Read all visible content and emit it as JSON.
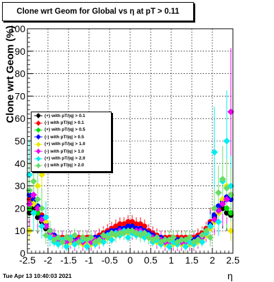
{
  "chart_data": {
    "type": "scatter",
    "title": "Clone wrt Geom for Global vs   η at pT > 0.11",
    "xlabel": "η",
    "ylabel": "Clone wrt Geom (%)",
    "xlim": [
      -2.5,
      2.5
    ],
    "ylim": [
      0,
      100
    ],
    "x_ticks": [
      "-2.5",
      "-2",
      "-1.5",
      "-1",
      "-0.5",
      "0",
      "0.5",
      "1",
      "1.5",
      "2",
      "2.5"
    ],
    "y_ticks": [
      "0",
      "10",
      "20",
      "30",
      "40",
      "50",
      "60",
      "70",
      "80",
      "90",
      "100"
    ],
    "grid": true,
    "legend_position": "left",
    "series": [
      {
        "name": "(+) with pT/|q| > 0.1",
        "color": "#000000",
        "marker": "circle",
        "x": [
          -2.45,
          -2.35,
          -2.25,
          -2.15,
          -2.05,
          -1.95,
          -1.85,
          -1.75,
          -1.65,
          -1.55,
          -1.45,
          -1.35,
          -1.25,
          -1.15,
          -1.05,
          -0.95,
          -0.85,
          -0.75,
          -0.65,
          -0.55,
          -0.45,
          -0.35,
          -0.25,
          -0.15,
          -0.05,
          0.05,
          0.15,
          0.25,
          0.35,
          0.45,
          0.55,
          0.65,
          0.75,
          0.85,
          0.95,
          1.05,
          1.15,
          1.25,
          1.35,
          1.45,
          1.55,
          1.65,
          1.75,
          1.85,
          1.95,
          2.05,
          2.15,
          2.25,
          2.35,
          2.45
        ],
        "y": [
          18,
          20,
          16,
          14,
          11,
          9,
          7,
          6,
          6,
          6,
          6,
          6,
          6,
          6,
          6,
          6,
          6,
          7,
          8,
          9,
          10,
          11,
          11,
          11,
          11,
          11,
          11,
          11,
          10,
          9,
          7,
          7,
          6,
          6,
          6,
          6,
          6,
          6,
          6,
          6,
          6,
          7,
          8,
          10,
          13,
          16,
          18,
          20,
          18,
          17
        ]
      },
      {
        "name": "(-) with pT/|q| > 0.1",
        "color": "#ff0000",
        "marker": "circle",
        "x": [
          -2.45,
          -2.35,
          -2.25,
          -2.15,
          -2.05,
          -1.95,
          -1.85,
          -1.75,
          -1.65,
          -1.55,
          -1.45,
          -1.35,
          -1.25,
          -1.15,
          -1.05,
          -0.95,
          -0.85,
          -0.75,
          -0.65,
          -0.55,
          -0.45,
          -0.35,
          -0.25,
          -0.15,
          -0.05,
          0.05,
          0.15,
          0.25,
          0.35,
          0.45,
          0.55,
          0.65,
          0.75,
          0.85,
          0.95,
          1.05,
          1.15,
          1.25,
          1.35,
          1.45,
          1.55,
          1.65,
          1.75,
          1.85,
          1.95,
          2.05,
          2.15,
          2.25,
          2.35,
          2.45
        ],
        "y": [
          24,
          22,
          20,
          17,
          13,
          10,
          8,
          7,
          7,
          7,
          7,
          7,
          7,
          7,
          7,
          7,
          7,
          8,
          9,
          10,
          11,
          12,
          13,
          13,
          14,
          14,
          13,
          13,
          12,
          10,
          9,
          8,
          7,
          7,
          7,
          7,
          7,
          7,
          7,
          7,
          7,
          8,
          9,
          11,
          14,
          17,
          20,
          22,
          24,
          26
        ]
      },
      {
        "name": "(+) with pT/|q| > 0.5",
        "color": "#00dd00",
        "marker": "circle",
        "x": [
          -2.45,
          -2.35,
          -2.25,
          -2.15,
          -2.05,
          -1.95,
          -1.85,
          -1.75,
          -1.65,
          -1.55,
          -1.45,
          -1.35,
          -1.25,
          -1.15,
          -1.05,
          -0.95,
          -0.85,
          -0.75,
          -0.65,
          -0.55,
          -0.45,
          -0.35,
          -0.25,
          -0.15,
          -0.05,
          0.05,
          0.15,
          0.25,
          0.35,
          0.45,
          0.55,
          0.65,
          0.75,
          0.85,
          0.95,
          1.05,
          1.15,
          1.25,
          1.35,
          1.45,
          1.55,
          1.65,
          1.75,
          1.85,
          1.95,
          2.05,
          2.15,
          2.25,
          2.35,
          2.45
        ],
        "y": [
          20,
          23,
          18,
          15,
          12,
          9,
          7,
          6,
          6,
          5,
          6,
          5,
          6,
          5,
          6,
          6,
          6,
          6,
          7,
          8,
          9,
          9,
          10,
          10,
          10,
          10,
          10,
          10,
          9,
          8,
          7,
          6,
          6,
          5,
          6,
          5,
          6,
          5,
          6,
          5,
          6,
          6,
          7,
          9,
          12,
          15,
          18,
          22,
          20,
          18
        ]
      },
      {
        "name": "(-) with pT/|q| > 0.5",
        "color": "#0000ff",
        "marker": "circle",
        "x": [
          -2.45,
          -2.35,
          -2.25,
          -2.15,
          -2.05,
          -1.95,
          -1.85,
          -1.75,
          -1.65,
          -1.55,
          -1.45,
          -1.35,
          -1.25,
          -1.15,
          -1.05,
          -0.95,
          -0.85,
          -0.75,
          -0.65,
          -0.55,
          -0.45,
          -0.35,
          -0.25,
          -0.15,
          -0.05,
          0.05,
          0.15,
          0.25,
          0.35,
          0.45,
          0.55,
          0.65,
          0.75,
          0.85,
          0.95,
          1.05,
          1.15,
          1.25,
          1.35,
          1.45,
          1.55,
          1.65,
          1.75,
          1.85,
          1.95,
          2.05,
          2.15,
          2.25,
          2.35,
          2.45
        ],
        "y": [
          26,
          24,
          21,
          16,
          13,
          10,
          8,
          7,
          6,
          6,
          6,
          6,
          6,
          6,
          6,
          6,
          7,
          7,
          8,
          9,
          10,
          10,
          11,
          11,
          12,
          12,
          11,
          11,
          10,
          9,
          8,
          7,
          7,
          6,
          6,
          6,
          6,
          6,
          6,
          6,
          6,
          7,
          8,
          10,
          13,
          17,
          21,
          23,
          25,
          24
        ]
      },
      {
        "name": "(+) with pT/|q| > 1.0",
        "color": "#e8e800",
        "marker": "diamond",
        "x": [
          -2.45,
          -2.35,
          -2.25,
          -2.15,
          -2.05,
          -1.95,
          -1.85,
          -1.75,
          -1.65,
          -1.55,
          -1.45,
          -1.35,
          -1.25,
          -1.15,
          -1.05,
          -0.95,
          -0.85,
          -0.75,
          -0.65,
          -0.55,
          -0.45,
          -0.35,
          -0.25,
          -0.15,
          -0.05,
          0.05,
          0.15,
          0.25,
          0.35,
          0.45,
          0.55,
          0.65,
          0.75,
          0.85,
          0.95,
          1.05,
          1.15,
          1.25,
          1.35,
          1.45,
          1.55,
          1.65,
          1.75,
          1.85,
          1.95,
          2.05,
          2.15,
          2.25,
          2.35,
          2.45
        ],
        "y": [
          10,
          22,
          30,
          35,
          14,
          8,
          6,
          5,
          5,
          4,
          5,
          4,
          5,
          4,
          5,
          4,
          5,
          5,
          6,
          7,
          8,
          8,
          9,
          9,
          9,
          9,
          9,
          9,
          8,
          7,
          6,
          5,
          5,
          4,
          4,
          4,
          4,
          4,
          3,
          4,
          4,
          5,
          6,
          8,
          11,
          14,
          18,
          24,
          30,
          10
        ]
      },
      {
        "name": "(-) with pT/|q| > 1.0",
        "color": "#ee00ee",
        "marker": "diamond",
        "x": [
          -2.45,
          -2.35,
          -2.25,
          -2.15,
          -2.05,
          -1.95,
          -1.85,
          -1.75,
          -1.65,
          -1.55,
          -1.45,
          -1.35,
          -1.25,
          -1.15,
          -1.05,
          -0.95,
          -0.85,
          -0.75,
          -0.65,
          -0.55,
          -0.45,
          -0.35,
          -0.25,
          -0.15,
          -0.05,
          0.05,
          0.15,
          0.25,
          0.35,
          0.45,
          0.55,
          0.65,
          0.75,
          0.85,
          0.95,
          1.05,
          1.15,
          1.25,
          1.35,
          1.45,
          1.55,
          1.65,
          1.75,
          1.85,
          1.95,
          2.05,
          2.15,
          2.25,
          2.35,
          2.45
        ],
        "y": [
          22,
          26,
          20,
          15,
          12,
          9,
          7,
          6,
          6,
          5,
          6,
          5,
          6,
          5,
          6,
          5,
          6,
          6,
          7,
          8,
          9,
          9,
          10,
          10,
          10,
          10,
          10,
          10,
          9,
          8,
          7,
          6,
          6,
          5,
          5,
          5,
          5,
          5,
          5,
          5,
          5,
          6,
          7,
          9,
          12,
          15,
          19,
          22,
          24,
          63
        ]
      },
      {
        "name": "(+) with pT/|q| > 2.0",
        "color": "#00eeee",
        "marker": "diamond",
        "x": [
          -2.45,
          -2.35,
          -2.25,
          -2.15,
          -2.05,
          -1.95,
          -1.85,
          -1.75,
          -1.65,
          -1.55,
          -1.45,
          -1.35,
          -1.25,
          -1.15,
          -1.05,
          -0.95,
          -0.85,
          -0.75,
          -0.65,
          -0.55,
          -0.45,
          -0.35,
          -0.25,
          -0.15,
          -0.05,
          0.05,
          0.15,
          0.25,
          0.35,
          0.45,
          0.55,
          0.65,
          0.75,
          0.85,
          0.95,
          1.05,
          1.15,
          1.25,
          1.35,
          1.45,
          1.55,
          1.65,
          1.75,
          1.85,
          1.95,
          2.05,
          2.15,
          2.25,
          2.35,
          2.45
        ],
        "y": [
          35,
          18,
          38,
          12,
          16,
          7,
          5,
          4,
          6,
          3,
          7,
          4,
          5,
          6,
          3,
          7,
          4,
          6,
          5,
          8,
          6,
          9,
          8,
          10,
          7,
          9,
          8,
          9,
          7,
          8,
          5,
          6,
          4,
          6,
          3,
          5,
          4,
          6,
          3,
          5,
          4,
          6,
          5,
          9,
          12,
          45,
          14,
          32,
          50,
          30
        ]
      },
      {
        "name": "(-) with pT/|q| > 2.0",
        "color": "#66dd66",
        "marker": "diamond",
        "x": [
          -2.45,
          -2.35,
          -2.25,
          -2.15,
          -2.05,
          -1.95,
          -1.85,
          -1.75,
          -1.65,
          -1.55,
          -1.45,
          -1.35,
          -1.25,
          -1.15,
          -1.05,
          -0.95,
          -0.85,
          -0.75,
          -0.65,
          -0.55,
          -0.45,
          -0.35,
          -0.25,
          -0.15,
          -0.05,
          0.05,
          0.15,
          0.25,
          0.35,
          0.45,
          0.55,
          0.65,
          0.75,
          0.85,
          0.95,
          1.05,
          1.15,
          1.25,
          1.35,
          1.45,
          1.55,
          1.65,
          1.75,
          1.85,
          1.95,
          2.05,
          2.15,
          2.25,
          2.35,
          2.45
        ],
        "y": [
          28,
          32,
          24,
          20,
          8,
          10,
          6,
          7,
          5,
          7,
          6,
          8,
          5,
          7,
          6,
          7,
          5,
          6,
          8,
          7,
          9,
          8,
          9,
          9,
          10,
          10,
          9,
          8,
          9,
          7,
          6,
          7,
          5,
          6,
          6,
          7,
          5,
          6,
          6,
          7,
          5,
          6,
          8,
          10,
          7,
          20,
          27,
          33,
          29,
          26
        ]
      }
    ]
  },
  "footer": {
    "timestamp": "Tue Apr 13 10:40:03 2021"
  }
}
